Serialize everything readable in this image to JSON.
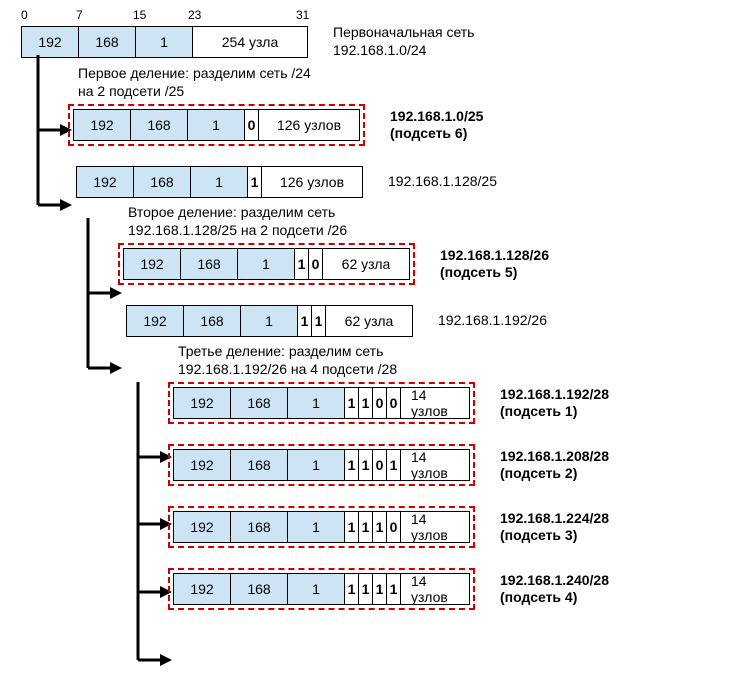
{
  "colors": {
    "octet_fill": "#cde4f5",
    "border": "#000000",
    "dashed_border": "#cc0000",
    "background": "#ffffff",
    "arrow": "#000000"
  },
  "typography": {
    "font_family": "Arial, sans-serif",
    "base_size_pt": 10,
    "label_size_pt": 11
  },
  "bit_ruler": {
    "t0": "0",
    "t7": "7",
    "t15": "15",
    "t23": "23",
    "t31": "31"
  },
  "original": {
    "octets": [
      "192",
      "168",
      "1"
    ],
    "host": "254 узла",
    "host_width": 114,
    "label_l1": "Первоначальная сеть",
    "label_l2": "192.168.1.0/24"
  },
  "div1": {
    "caption_l1": "Первое деление: разделим сеть /24",
    "caption_l2": "на 2 подсети /25",
    "sub_a": {
      "octets": [
        "192",
        "168",
        "1"
      ],
      "bits": [
        "0"
      ],
      "host": "126 узлов",
      "host_width": 100,
      "label_l1": "192.168.1.0/25",
      "label_l2": "(подсеть 6)",
      "boxed": true
    },
    "sub_b": {
      "octets": [
        "192",
        "168",
        "1"
      ],
      "bits": [
        "1"
      ],
      "host": "126 узлов",
      "host_width": 100,
      "label_l1": "192.168.1.128/25",
      "boxed": false
    }
  },
  "div2": {
    "caption_l1": "Второе деление: разделим сеть",
    "caption_l2": "192.168.1.128/25 на 2 подсети /26",
    "sub_a": {
      "octets": [
        "192",
        "168",
        "1"
      ],
      "bits": [
        "1",
        "0"
      ],
      "host": "62 узла",
      "host_width": 86,
      "label_l1": "192.168.1.128/26",
      "label_l2": "(подсеть 5)",
      "boxed": true
    },
    "sub_b": {
      "octets": [
        "192",
        "168",
        "1"
      ],
      "bits": [
        "1",
        "1"
      ],
      "host": "62 узла",
      "host_width": 86,
      "label_l1": "192.168.1.192/26",
      "boxed": false
    }
  },
  "div3": {
    "caption_l1": "Третье деление: разделим сеть",
    "caption_l2": "192.168.1.192/26 на 4 подсети /28",
    "sub_a": {
      "octets": [
        "192",
        "168",
        "1"
      ],
      "bits": [
        "1",
        "1",
        "0",
        "0"
      ],
      "host": "14 узлов",
      "host_width": 68,
      "label_l1": "192.168.1.192/28",
      "label_l2": "(подсеть 1)",
      "boxed": true
    },
    "sub_b": {
      "octets": [
        "192",
        "168",
        "1"
      ],
      "bits": [
        "1",
        "1",
        "0",
        "1"
      ],
      "host": "14 узлов",
      "host_width": 68,
      "label_l1": "192.168.1.208/28",
      "label_l2": "(подсеть 2)",
      "boxed": true
    },
    "sub_c": {
      "octets": [
        "192",
        "168",
        "1"
      ],
      "bits": [
        "1",
        "1",
        "1",
        "0"
      ],
      "host": "14 узлов",
      "host_width": 68,
      "label_l1": "192.168.1.224/28",
      "label_l2": "(подсеть 3)",
      "boxed": true
    },
    "sub_d": {
      "octets": [
        "192",
        "168",
        "1"
      ],
      "bits": [
        "1",
        "1",
        "1",
        "1"
      ],
      "host": "14 узлов",
      "host_width": 68,
      "label_l1": "192.168.1.240/28",
      "label_l2": "(подсеть 4)",
      "boxed": true
    }
  }
}
